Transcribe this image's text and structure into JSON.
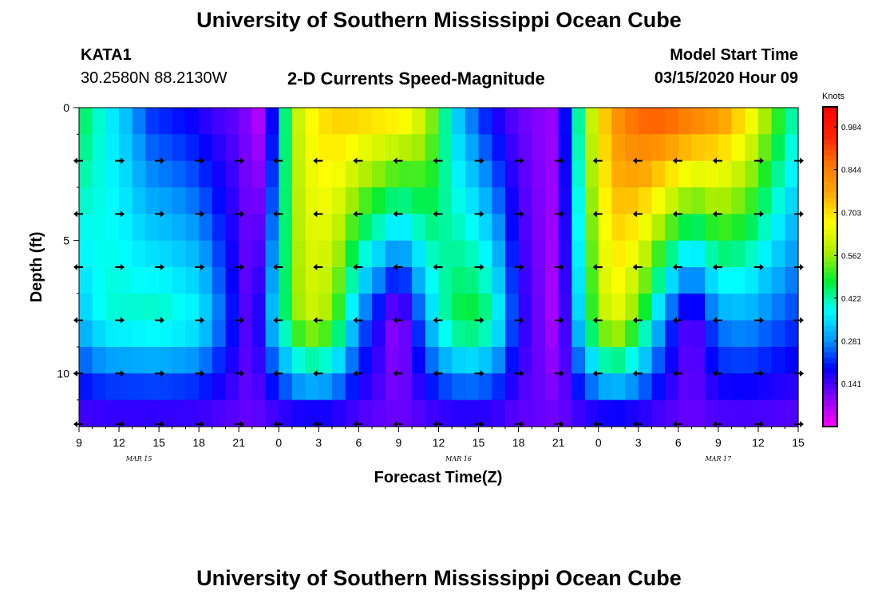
{
  "page": {
    "title_top": "University of Southern Mississippi Ocean Cube",
    "title_bottom": "University of Southern Mississippi Ocean Cube",
    "station_id": "KATA1",
    "station_coords": "30.2580N 88.2130W",
    "plot_title": "2-D Currents Speed-Magnitude",
    "model_label": "Model Start Time",
    "model_time": "03/15/2020 Hour 09"
  },
  "colors": {
    "scale": [
      "#ff00ff",
      "#8800ff",
      "#0000ff",
      "#0099ff",
      "#00ffff",
      "#00ee33",
      "#aaee00",
      "#ffff00",
      "#ffaa00",
      "#ff7700",
      "#ff2200",
      "#ff0000"
    ]
  },
  "chart_data": {
    "type": "heatmap",
    "title": "2-D Currents Speed-Magnitude",
    "xlabel": "Forecast Time(Z)",
    "ylabel": "Depth (ft)",
    "x_tick_labels": [
      "9",
      "12",
      "15",
      "18",
      "21",
      "0",
      "3",
      "6",
      "9",
      "12",
      "15",
      "18",
      "21",
      "0",
      "3",
      "6",
      "9",
      "12",
      "15"
    ],
    "date_labels": [
      "MAR 15",
      "MAR 16",
      "MAR 17"
    ],
    "y_tick_labels": [
      "0",
      "5",
      "10"
    ],
    "ylim": [
      0,
      12
    ],
    "xlim_hours": [
      0,
      54
    ],
    "colorbar_unit": "Knots",
    "colorbar_ticks": [
      "0.984",
      "0.844",
      "0.703",
      "0.562",
      "0.422",
      "0.281",
      "0.141"
    ],
    "colorbar_range": [
      0,
      1.05
    ],
    "depth_levels": [
      0,
      1,
      2,
      3,
      4,
      5,
      6,
      7,
      8,
      9,
      10,
      11,
      12
    ],
    "surface_speed_by_hour": [
      [
        0,
        0.48
      ],
      [
        2,
        0.38
      ],
      [
        4,
        0.3
      ],
      [
        5,
        0.22
      ],
      [
        8,
        0.18
      ],
      [
        10,
        0.14
      ],
      [
        12,
        0.12
      ],
      [
        13,
        0.08
      ],
      [
        14,
        0.04
      ],
      [
        16,
        0.58
      ],
      [
        18,
        0.7
      ],
      [
        20,
        0.74
      ],
      [
        24,
        0.72
      ],
      [
        26,
        0.62
      ],
      [
        27,
        0.5
      ],
      [
        28,
        0.36
      ],
      [
        30,
        0.22
      ],
      [
        32,
        0.14
      ],
      [
        34,
        0.1
      ],
      [
        36,
        0.08
      ],
      [
        38,
        0.55
      ],
      [
        40,
        0.8
      ],
      [
        42,
        0.9
      ],
      [
        44,
        0.92
      ],
      [
        46,
        0.88
      ],
      [
        48,
        0.82
      ],
      [
        50,
        0.72
      ],
      [
        52,
        0.55
      ],
      [
        54,
        0.4
      ]
    ],
    "speed_at_8ft_by_hour": [
      [
        0,
        0.32
      ],
      [
        2,
        0.4
      ],
      [
        6,
        0.42
      ],
      [
        9,
        0.38
      ],
      [
        11,
        0.24
      ],
      [
        13,
        0.1
      ],
      [
        15,
        0.4
      ],
      [
        17,
        0.62
      ],
      [
        19,
        0.56
      ],
      [
        21,
        0.28
      ],
      [
        24,
        0.06
      ],
      [
        27,
        0.4
      ],
      [
        29,
        0.5
      ],
      [
        31,
        0.44
      ],
      [
        33,
        0.18
      ],
      [
        36,
        0.05
      ],
      [
        38,
        0.44
      ],
      [
        40,
        0.66
      ],
      [
        42,
        0.52
      ],
      [
        44,
        0.26
      ],
      [
        46,
        0.1
      ],
      [
        48,
        0.28
      ],
      [
        50,
        0.3
      ],
      [
        54,
        0.22
      ]
    ],
    "arrow_direction_by_hour": [
      [
        0,
        "west"
      ],
      [
        2,
        "east"
      ],
      [
        6,
        "east"
      ],
      [
        9,
        "east"
      ],
      [
        12,
        "east"
      ],
      [
        14,
        "west"
      ],
      [
        18,
        "west"
      ],
      [
        24,
        "west"
      ],
      [
        27,
        "west"
      ],
      [
        30,
        "east"
      ],
      [
        33,
        "east"
      ],
      [
        36,
        "east"
      ],
      [
        39,
        "west"
      ],
      [
        42,
        "west"
      ],
      [
        45,
        "west"
      ],
      [
        48,
        "west"
      ],
      [
        51,
        "east"
      ],
      [
        54,
        "east"
      ]
    ]
  }
}
